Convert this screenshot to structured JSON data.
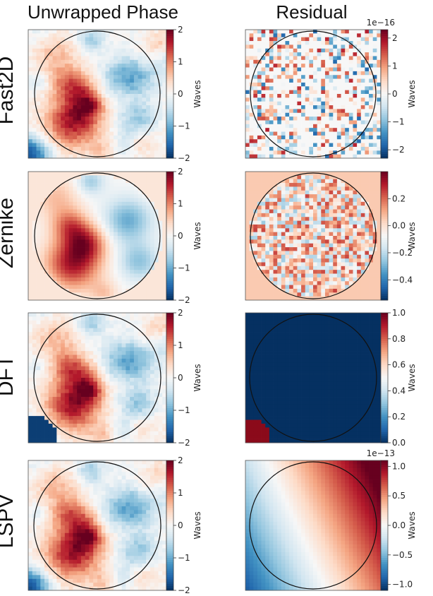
{
  "columns": {
    "left": "Unwrapped Phase",
    "right": "Residual"
  },
  "rows": [
    "Fast2D",
    "Zernike",
    "DFT",
    "LSPV"
  ],
  "colors": {
    "cmap": [
      "#053061",
      "#2166ac",
      "#4393c3",
      "#92c5de",
      "#d1e5f0",
      "#f7f7f7",
      "#fddbc7",
      "#f4a582",
      "#d6604d",
      "#b2182b",
      "#67001f"
    ],
    "aperture": "#111111",
    "dft_residual_background": "#053061",
    "dft_residual_corner": "#8b0a1a"
  },
  "chart_data": [
    {
      "type": "heatmap",
      "row": "Fast2D",
      "panel": "Unwrapped Phase",
      "pattern": "phase",
      "colorbar": {
        "label": "Waves",
        "range": [
          -2,
          2
        ],
        "ticks": [
          2,
          1,
          0,
          -1,
          -2
        ],
        "tick_labels": [
          "2",
          "1",
          "0",
          "−1",
          "−2"
        ],
        "offset": ""
      }
    },
    {
      "type": "heatmap",
      "row": "Fast2D",
      "panel": "Residual",
      "pattern": "speckle",
      "colorbar": {
        "label": "Waves",
        "range": [
          -2.3,
          2.3
        ],
        "ticks": [
          2,
          1,
          0,
          -1,
          -2
        ],
        "tick_labels": [
          "2",
          "1",
          "0",
          "−1",
          "−2"
        ],
        "offset": "1e−16"
      }
    },
    {
      "type": "heatmap",
      "row": "Zernike",
      "panel": "Unwrapped Phase",
      "pattern": "smooth",
      "colorbar": {
        "label": "Waves",
        "range": [
          -2,
          2
        ],
        "ticks": [
          2,
          1,
          0,
          -1,
          -2
        ],
        "tick_labels": [
          "2",
          "1",
          "0",
          "−1",
          "−2"
        ],
        "offset": ""
      }
    },
    {
      "type": "heatmap",
      "row": "Zernike",
      "panel": "Residual",
      "pattern": "noise",
      "colorbar": {
        "label": "Waves",
        "range": [
          -0.55,
          0.4
        ],
        "ticks": [
          0.2,
          0.0,
          -0.2,
          -0.4
        ],
        "tick_labels": [
          "0.2",
          "0.0",
          "−0.2",
          "−0.4"
        ],
        "offset": ""
      }
    },
    {
      "type": "heatmap",
      "row": "DFT",
      "panel": "Unwrapped Phase",
      "pattern": "phase-dft",
      "colorbar": {
        "label": "Waves",
        "range": [
          -2,
          2
        ],
        "ticks": [
          2,
          1,
          0,
          -1,
          -2
        ],
        "tick_labels": [
          "2",
          "1",
          "0",
          "−1",
          "−2"
        ],
        "offset": ""
      }
    },
    {
      "type": "heatmap",
      "row": "DFT",
      "panel": "Residual",
      "pattern": "flat",
      "colorbar": {
        "label": "Waves",
        "range": [
          0.0,
          1.0
        ],
        "ticks": [
          1.0,
          0.8,
          0.6,
          0.4,
          0.2,
          0.0
        ],
        "tick_labels": [
          "1.0",
          "0.8",
          "0.6",
          "0.4",
          "0.2",
          "0.0"
        ],
        "offset": ""
      }
    },
    {
      "type": "heatmap",
      "row": "LSPV",
      "panel": "Unwrapped Phase",
      "pattern": "phase",
      "colorbar": {
        "label": "Waves",
        "range": [
          -2,
          2
        ],
        "ticks": [
          2,
          1,
          0,
          -1,
          -2
        ],
        "tick_labels": [
          "2",
          "1",
          "0",
          "−1",
          "−2"
        ],
        "offset": ""
      }
    },
    {
      "type": "heatmap",
      "row": "LSPV",
      "panel": "Residual",
      "pattern": "gradient",
      "colorbar": {
        "label": "Waves",
        "range": [
          -1.1,
          1.1
        ],
        "ticks": [
          1.0,
          0.5,
          0.0,
          -0.5,
          -1.0
        ],
        "tick_labels": [
          "1.0",
          "0.5",
          "0.0",
          "−0.5",
          "−1.0"
        ],
        "offset": "1e−13"
      }
    }
  ]
}
